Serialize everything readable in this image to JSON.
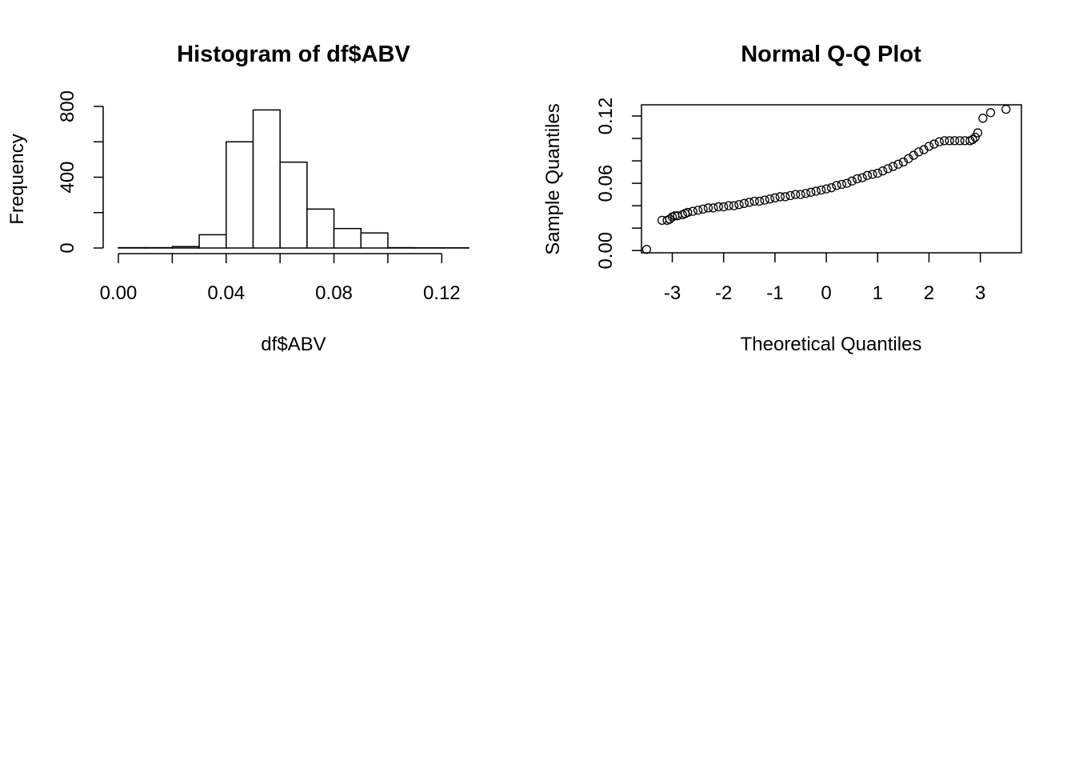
{
  "chart_data": [
    {
      "type": "bar",
      "title": "Histogram of df$ABV",
      "xlabel": "df$ABV",
      "ylabel": "Frequency",
      "bins": [
        {
          "from": 0.0,
          "to": 0.01,
          "count": 2
        },
        {
          "from": 0.01,
          "to": 0.02,
          "count": 2
        },
        {
          "from": 0.02,
          "to": 0.03,
          "count": 8
        },
        {
          "from": 0.03,
          "to": 0.04,
          "count": 75
        },
        {
          "from": 0.04,
          "to": 0.05,
          "count": 600
        },
        {
          "from": 0.05,
          "to": 0.06,
          "count": 780
        },
        {
          "from": 0.06,
          "to": 0.07,
          "count": 485
        },
        {
          "from": 0.07,
          "to": 0.08,
          "count": 220
        },
        {
          "from": 0.08,
          "to": 0.09,
          "count": 110
        },
        {
          "from": 0.09,
          "to": 0.1,
          "count": 85
        },
        {
          "from": 0.1,
          "to": 0.11,
          "count": 2
        },
        {
          "from": 0.11,
          "to": 0.12,
          "count": 1
        },
        {
          "from": 0.12,
          "to": 0.13,
          "count": 1
        }
      ],
      "xlim": [
        0.0,
        0.13
      ],
      "ylim": [
        0,
        800
      ],
      "x_ticks": [
        0.0,
        0.02,
        0.04,
        0.06,
        0.08,
        0.1,
        0.12
      ],
      "x_tick_labels": [
        "0.00",
        "0.04",
        "0.08",
        "0.12"
      ],
      "y_ticks": [
        0,
        200,
        400,
        600,
        800
      ],
      "y_tick_labels": [
        "0",
        "400",
        "800"
      ],
      "grid": false,
      "legend": "none"
    },
    {
      "type": "scatter",
      "title": "Normal Q-Q Plot",
      "xlabel": "Theoretical Quantiles",
      "ylabel": "Sample Quantiles",
      "xlim": [
        -3.6,
        3.8
      ],
      "ylim": [
        -0.002,
        0.13
      ],
      "x_ticks": [
        -3,
        -2,
        -1,
        0,
        1,
        2,
        3
      ],
      "x_tick_labels": [
        "-3",
        "-2",
        "-1",
        "0",
        "1",
        "2",
        "3"
      ],
      "y_ticks": [
        0.0,
        0.02,
        0.04,
        0.06,
        0.08,
        0.1,
        0.12
      ],
      "y_tick_labels": [
        "0.00",
        "0.06",
        "0.12"
      ],
      "grid": false,
      "legend": "none",
      "marker": "open-circle",
      "points": [
        [
          -3.5,
          0.001
        ],
        [
          -3.2,
          0.027
        ],
        [
          -3.1,
          0.027
        ],
        [
          -3.05,
          0.028
        ],
        [
          -3.0,
          0.03
        ],
        [
          -2.95,
          0.031
        ],
        [
          -2.9,
          0.031
        ],
        [
          -2.8,
          0.032
        ],
        [
          -2.75,
          0.033
        ],
        [
          -2.7,
          0.034
        ],
        [
          -2.6,
          0.035
        ],
        [
          -2.5,
          0.036
        ],
        [
          -2.4,
          0.037
        ],
        [
          -2.3,
          0.038
        ],
        [
          -2.2,
          0.038
        ],
        [
          -2.1,
          0.039
        ],
        [
          -2.0,
          0.039
        ],
        [
          -1.9,
          0.04
        ],
        [
          -1.8,
          0.04
        ],
        [
          -1.7,
          0.041
        ],
        [
          -1.6,
          0.042
        ],
        [
          -1.5,
          0.043
        ],
        [
          -1.4,
          0.044
        ],
        [
          -1.3,
          0.044
        ],
        [
          -1.2,
          0.045
        ],
        [
          -1.1,
          0.046
        ],
        [
          -1.0,
          0.047
        ],
        [
          -0.9,
          0.048
        ],
        [
          -0.8,
          0.048
        ],
        [
          -0.7,
          0.049
        ],
        [
          -0.6,
          0.05
        ],
        [
          -0.5,
          0.05
        ],
        [
          -0.4,
          0.051
        ],
        [
          -0.3,
          0.052
        ],
        [
          -0.2,
          0.053
        ],
        [
          -0.1,
          0.054
        ],
        [
          0.0,
          0.055
        ],
        [
          0.1,
          0.056
        ],
        [
          0.2,
          0.058
        ],
        [
          0.3,
          0.059
        ],
        [
          0.4,
          0.06
        ],
        [
          0.5,
          0.062
        ],
        [
          0.6,
          0.064
        ],
        [
          0.7,
          0.065
        ],
        [
          0.8,
          0.067
        ],
        [
          0.9,
          0.068
        ],
        [
          1.0,
          0.069
        ],
        [
          1.1,
          0.071
        ],
        [
          1.2,
          0.073
        ],
        [
          1.3,
          0.075
        ],
        [
          1.4,
          0.077
        ],
        [
          1.5,
          0.079
        ],
        [
          1.6,
          0.082
        ],
        [
          1.7,
          0.085
        ],
        [
          1.8,
          0.088
        ],
        [
          1.9,
          0.09
        ],
        [
          2.0,
          0.093
        ],
        [
          2.1,
          0.095
        ],
        [
          2.2,
          0.097
        ],
        [
          2.3,
          0.098
        ],
        [
          2.4,
          0.098
        ],
        [
          2.5,
          0.098
        ],
        [
          2.6,
          0.098
        ],
        [
          2.7,
          0.098
        ],
        [
          2.8,
          0.098
        ],
        [
          2.85,
          0.099
        ],
        [
          2.9,
          0.101
        ],
        [
          2.95,
          0.105
        ],
        [
          3.05,
          0.118
        ],
        [
          3.2,
          0.123
        ],
        [
          3.5,
          0.126
        ]
      ]
    }
  ]
}
